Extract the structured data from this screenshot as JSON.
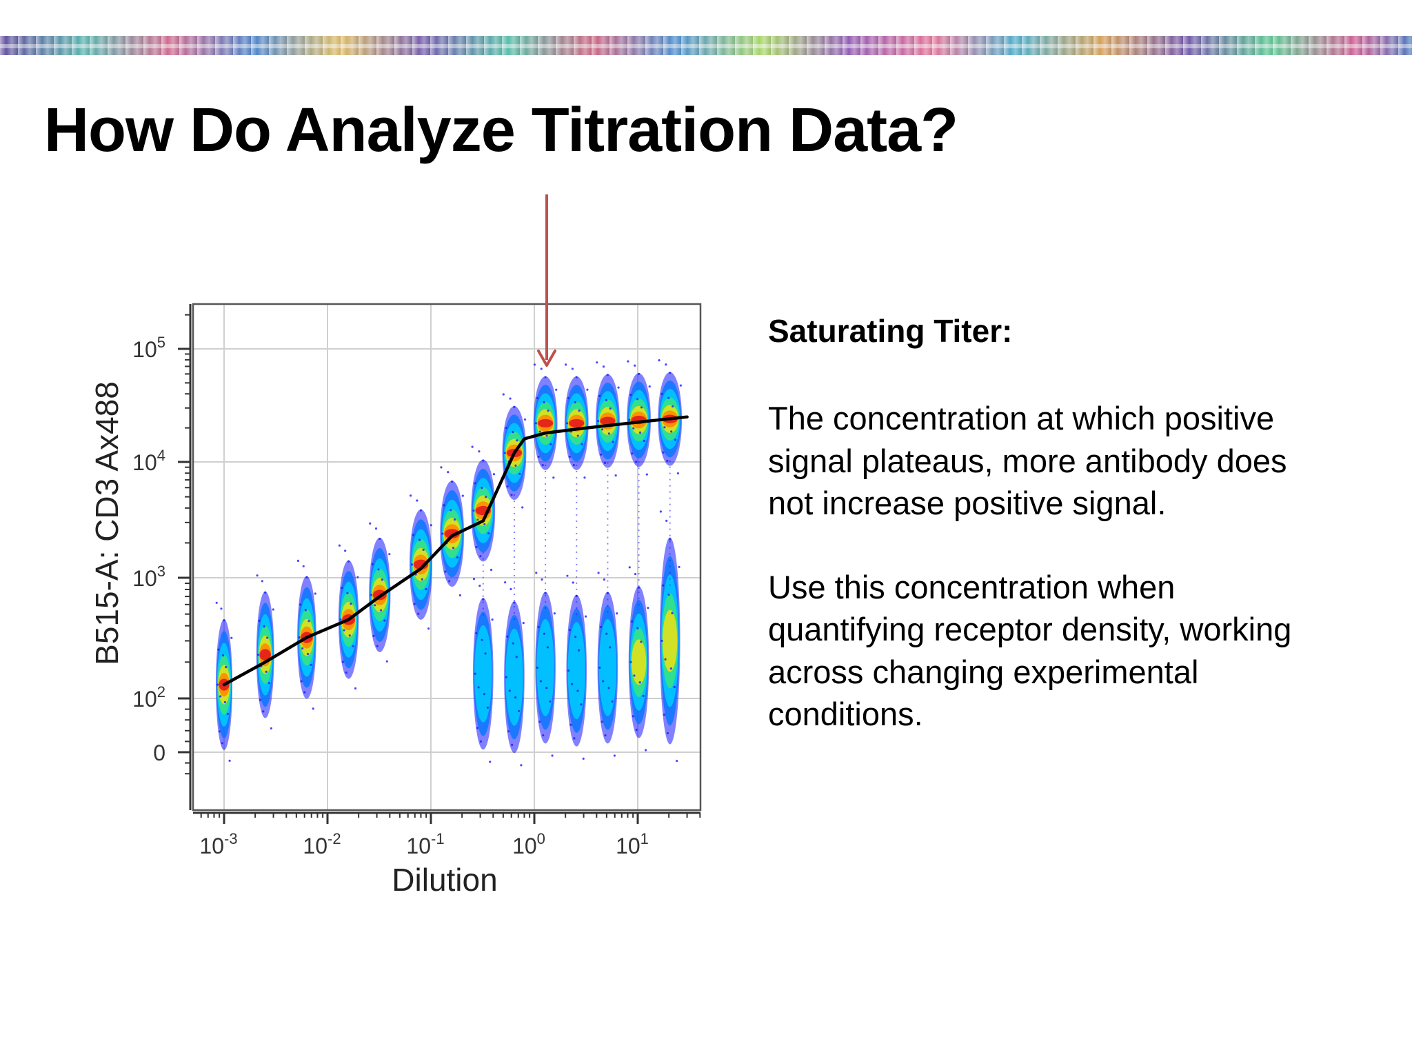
{
  "slide": {
    "title": "How Do Analyze Titration Data?",
    "subheading": "Saturating Titer:",
    "paragraph1": "The concentration at which positive signal plateaus, more antibody does not increase positive signal.",
    "paragraph2": "Use this concentration when quantifying receptor density, working across changing experimental conditions."
  },
  "colors": {
    "arrow": "#c0504d",
    "fit_line": "#000000",
    "density": [
      "#1a1aff",
      "#0077ff",
      "#00c8ff",
      "#33e08a",
      "#d9e021",
      "#ff8c00",
      "#e31a1c"
    ]
  },
  "chart_data": {
    "type": "scatter",
    "plot_style": "flow cytometry density plot (pseudocolor) with fitted line",
    "xlabel": "Dilution",
    "ylabel": "B515-A: CD3 Ax488",
    "x_scale": "log",
    "y_scale": "biexponential",
    "x_ticks": [
      {
        "label_base": "10",
        "label_exp": "-3",
        "value": 0.001
      },
      {
        "label_base": "10",
        "label_exp": "-2",
        "value": 0.01
      },
      {
        "label_base": "10",
        "label_exp": "-1",
        "value": 0.1
      },
      {
        "label_base": "10",
        "label_exp": "0",
        "value": 1
      },
      {
        "label_base": "10",
        "label_exp": "1",
        "value": 10
      }
    ],
    "y_ticks": [
      {
        "label_base": "0",
        "label_exp": "",
        "value": 0
      },
      {
        "label_base": "10",
        "label_exp": "2",
        "value": 100
      },
      {
        "label_base": "10",
        "label_exp": "3",
        "value": 1000
      },
      {
        "label_base": "10",
        "label_exp": "4",
        "value": 10000
      },
      {
        "label_base": "10",
        "label_exp": "5",
        "value": 100000
      }
    ],
    "xlim": [
      0.0007,
      35
    ],
    "grid": true,
    "populations": [
      {
        "dilution": 0.001,
        "positive_median": 130,
        "negative_median": null
      },
      {
        "dilution": 0.0025,
        "positive_median": 230,
        "negative_median": null
      },
      {
        "dilution": 0.0063,
        "positive_median": 320,
        "negative_median": null
      },
      {
        "dilution": 0.016,
        "positive_median": 450,
        "negative_median": null
      },
      {
        "dilution": 0.032,
        "positive_median": 720,
        "negative_median": null
      },
      {
        "dilution": 0.08,
        "positive_median": 1300,
        "negative_median": null
      },
      {
        "dilution": 0.16,
        "positive_median": 2400,
        "negative_median": null
      },
      {
        "dilution": 0.32,
        "positive_median": 3800,
        "negative_median": 160
      },
      {
        "dilution": 0.64,
        "positive_median": 12000,
        "negative_median": 150
      },
      {
        "dilution": 1.28,
        "positive_median": 22000,
        "negative_median": 180
      },
      {
        "dilution": 2.56,
        "positive_median": 22000,
        "negative_median": 170
      },
      {
        "dilution": 5.12,
        "positive_median": 23000,
        "negative_median": 180
      },
      {
        "dilution": 10.24,
        "positive_median": 23500,
        "negative_median": 200
      },
      {
        "dilution": 20.48,
        "positive_median": 24000,
        "negative_median": 300
      }
    ],
    "fit_line": {
      "x": [
        0.001,
        0.0025,
        0.0063,
        0.016,
        0.032,
        0.08,
        0.16,
        0.32,
        0.64,
        0.8,
        1.28,
        2.56,
        5.12,
        10.24,
        30
      ],
      "y": [
        130,
        200,
        320,
        450,
        700,
        1200,
        2300,
        3100,
        12000,
        16000,
        18000,
        19500,
        21000,
        22500,
        25000
      ]
    },
    "annotation": {
      "type": "arrow",
      "points_to_dilution": 1.28,
      "meaning": "saturating titer"
    }
  }
}
